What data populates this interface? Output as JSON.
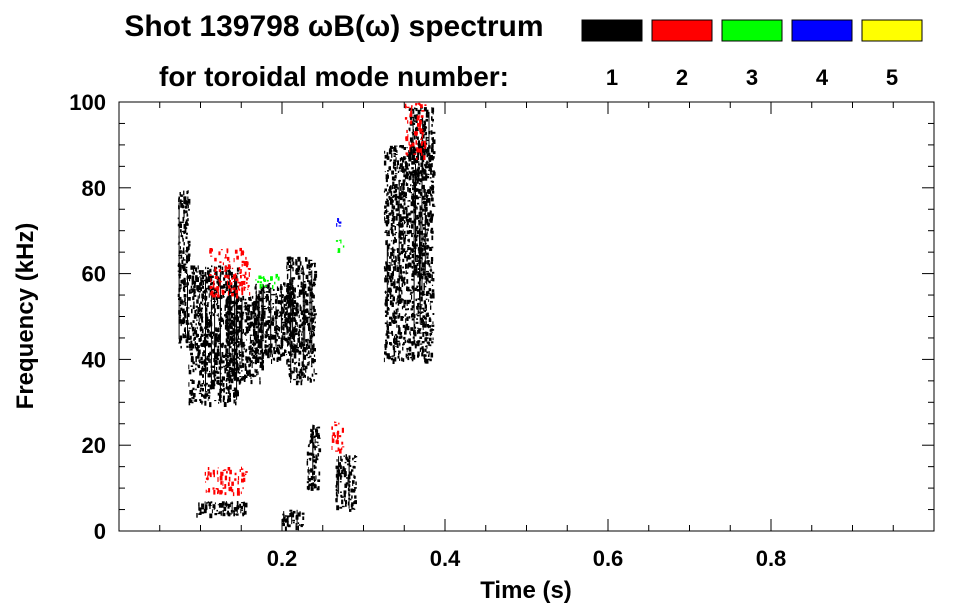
{
  "chart_data": {
    "type": "heatmap",
    "title_line1": "Shot 139798 ωB(ω) spectrum",
    "title_line2": "for toroidal mode number:",
    "xlabel": "Time (s)",
    "ylabel": "Frequency (kHz)",
    "xlim": [
      0,
      1.0
    ],
    "ylim": [
      0,
      100
    ],
    "xticks": [
      0.2,
      0.4,
      0.6,
      0.8
    ],
    "xtick_labels": [
      "0.2",
      "0.4",
      "0.6",
      "0.8"
    ],
    "yticks": [
      0,
      20,
      40,
      60,
      80,
      100
    ],
    "ytick_labels": [
      "0",
      "20",
      "40",
      "60",
      "80",
      "100"
    ],
    "legend": [
      {
        "label": "1",
        "color": "#000000"
      },
      {
        "label": "2",
        "color": "#ff0000"
      },
      {
        "label": "3",
        "color": "#00ff00"
      },
      {
        "label": "4",
        "color": "#0000ff"
      },
      {
        "label": "5",
        "color": "#ffff00"
      }
    ],
    "legend_placement": "top-right",
    "grid": false,
    "regions": [
      {
        "mode": 1,
        "t": [
          0.072,
          0.085
        ],
        "f": [
          43,
          80
        ]
      },
      {
        "mode": 1,
        "t": [
          0.085,
          0.145
        ],
        "f": [
          30,
          62
        ]
      },
      {
        "mode": 1,
        "t": [
          0.13,
          0.175
        ],
        "f": [
          35,
          55
        ]
      },
      {
        "mode": 1,
        "t": [
          0.165,
          0.215
        ],
        "f": [
          40,
          58
        ]
      },
      {
        "mode": 1,
        "t": [
          0.205,
          0.24
        ],
        "f": [
          35,
          64
        ]
      },
      {
        "mode": 1,
        "t": [
          0.093,
          0.155
        ],
        "f": [
          4,
          7
        ]
      },
      {
        "mode": 1,
        "t": [
          0.2,
          0.225
        ],
        "f": [
          1,
          5
        ]
      },
      {
        "mode": 1,
        "t": [
          0.23,
          0.245
        ],
        "f": [
          10,
          25
        ]
      },
      {
        "mode": 1,
        "t": [
          0.265,
          0.29
        ],
        "f": [
          5,
          18
        ]
      },
      {
        "mode": 1,
        "t": [
          0.325,
          0.385
        ],
        "f": [
          40,
          90
        ]
      },
      {
        "mode": 1,
        "t": [
          0.355,
          0.385
        ],
        "f": [
          82,
          99
        ]
      },
      {
        "mode": 2,
        "t": [
          0.11,
          0.16
        ],
        "f": [
          55,
          66
        ]
      },
      {
        "mode": 2,
        "t": [
          0.105,
          0.155
        ],
        "f": [
          9,
          15
        ]
      },
      {
        "mode": 2,
        "t": [
          0.26,
          0.275
        ],
        "f": [
          18,
          26
        ]
      },
      {
        "mode": 2,
        "t": [
          0.35,
          0.375
        ],
        "f": [
          87,
          100
        ]
      },
      {
        "mode": 3,
        "t": [
          0.165,
          0.195
        ],
        "f": [
          57,
          60
        ]
      },
      {
        "mode": 3,
        "t": [
          0.265,
          0.275
        ],
        "f": [
          65,
          68
        ]
      },
      {
        "mode": 4,
        "t": [
          0.265,
          0.27
        ],
        "f": [
          71,
          73
        ]
      }
    ]
  }
}
